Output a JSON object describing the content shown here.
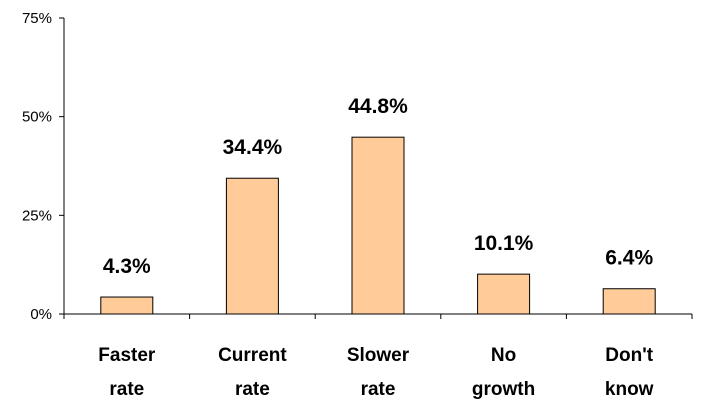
{
  "chart_data": {
    "type": "bar",
    "title": "",
    "xlabel": "",
    "ylabel": "",
    "categories": [
      [
        "Faster",
        "rate"
      ],
      [
        "Current",
        "rate"
      ],
      [
        "Slower",
        "rate"
      ],
      [
        "No",
        "growth"
      ],
      [
        "Don't",
        "know"
      ]
    ],
    "values": [
      4.3,
      34.4,
      44.8,
      10.1,
      6.4
    ],
    "data_labels": [
      "4.3%",
      "34.4%",
      "44.8%",
      "10.1%",
      "6.4%"
    ],
    "ylim": [
      0,
      75
    ],
    "yticks": [
      0,
      25,
      50,
      75
    ],
    "ytick_labels": [
      "0%",
      "25%",
      "50%",
      "75%"
    ],
    "grid": false,
    "legend": "none",
    "colors": {
      "bar_fill": "#FFCC99",
      "bar_stroke": "#000000",
      "axis": "#000000"
    }
  }
}
